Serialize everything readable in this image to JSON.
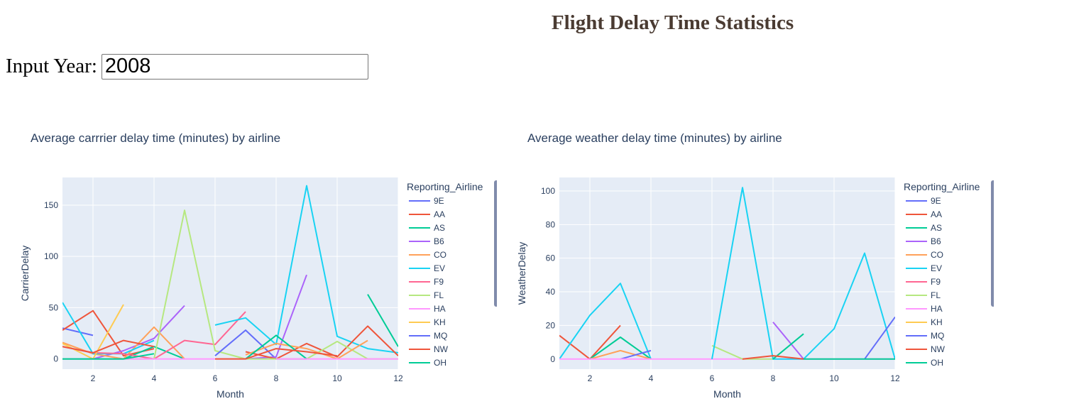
{
  "page": {
    "title": "Flight Delay Time Statistics",
    "input_label": "Input Year:",
    "input_value": "2008"
  },
  "legend_colors": {
    "9E": "#636efa",
    "AA": "#ef553b",
    "AS": "#00cc96",
    "B6": "#ab63fa",
    "CO": "#ffa15a",
    "EV": "#19d3f3",
    "F9": "#ff6692",
    "FL": "#b6e880",
    "HA": "#ff97ff",
    "KH": "#fecb52",
    "MQ": "#636efa",
    "NW": "#ef553b",
    "OH": "#00cc96"
  },
  "chart_data": [
    {
      "type": "line",
      "title": "Average carrrier delay time (minutes) by airline",
      "xlabel": "Month",
      "ylabel": "CarrierDelay",
      "xlim": [
        1,
        12
      ],
      "ylim": [
        -10,
        177
      ],
      "xticks": [
        2,
        4,
        6,
        8,
        10,
        12
      ],
      "yticks": [
        0,
        50,
        100,
        150
      ],
      "legend_title": "Reporting_Airline",
      "legend_entries": [
        "9E",
        "AA",
        "AS",
        "B6",
        "CO",
        "EV",
        "F9",
        "FL",
        "HA",
        "KH",
        "MQ",
        "NW",
        "OH"
      ],
      "legend_position": "right",
      "series": [
        {
          "name": "9E",
          "x": [
            1,
            2
          ],
          "y": [
            30,
            23
          ]
        },
        {
          "name": "AA",
          "x": [
            1,
            2,
            3,
            4
          ],
          "y": [
            28,
            47,
            3,
            10
          ]
        },
        {
          "name": "AS",
          "x": [
            1,
            2,
            3,
            4,
            5
          ],
          "y": [
            0,
            0,
            0,
            12,
            0
          ]
        },
        {
          "name": "B6",
          "x": [
            2,
            3,
            4,
            5
          ],
          "y": [
            0,
            8,
            20,
            52
          ]
        },
        {
          "name": "CO",
          "x": [
            1,
            2,
            3,
            4,
            5
          ],
          "y": [
            16,
            5,
            0,
            31,
            0
          ]
        },
        {
          "name": "EV",
          "x": [
            1,
            2,
            3,
            4
          ],
          "y": [
            55,
            5,
            5,
            18
          ]
        },
        {
          "name": "F9",
          "x": [
            1,
            2,
            3,
            4,
            5,
            6,
            7
          ],
          "y": [
            12,
            6,
            5,
            0,
            18,
            14,
            46
          ]
        },
        {
          "name": "FL",
          "x": [
            1,
            2,
            3,
            4,
            5,
            6,
            7
          ],
          "y": [
            0,
            0,
            0,
            0,
            145,
            8,
            0
          ]
        },
        {
          "name": "HA",
          "x": [
            1,
            2,
            3,
            4,
            5,
            6,
            7
          ],
          "y": [
            0,
            0,
            0,
            0,
            0,
            0,
            0
          ]
        },
        {
          "name": "KH",
          "x": [
            1,
            2,
            3
          ],
          "y": [
            15,
            0,
            53
          ]
        },
        {
          "name": "MQ",
          "x": [
            6,
            7,
            8,
            9
          ],
          "y": [
            3,
            28,
            0,
            0
          ]
        },
        {
          "name": "NW",
          "x": [
            1,
            2,
            3,
            4
          ],
          "y": [
            12,
            6,
            18,
            12
          ]
        },
        {
          "name": "OH",
          "x": [
            1,
            2,
            3,
            4
          ],
          "y": [
            0,
            0,
            0,
            5
          ]
        },
        {
          "name": "EV",
          "x": [
            6,
            7,
            8,
            9,
            10,
            11,
            12
          ],
          "y": [
            33,
            40,
            14,
            169,
            22,
            10,
            6
          ]
        },
        {
          "name": "B6",
          "x": [
            7,
            8,
            9
          ],
          "y": [
            0,
            2,
            82
          ]
        },
        {
          "name": "AA",
          "x": [
            7,
            8,
            9,
            10,
            11,
            12
          ],
          "y": [
            7,
            0,
            15,
            2,
            32,
            3
          ]
        },
        {
          "name": "FL",
          "x": [
            7,
            8,
            9,
            10,
            11,
            12
          ],
          "y": [
            0,
            0,
            0,
            17,
            0,
            0
          ]
        },
        {
          "name": "CO",
          "x": [
            7,
            8,
            9,
            10,
            11
          ],
          "y": [
            4,
            15,
            10,
            0,
            18
          ]
        },
        {
          "name": "AS",
          "x": [
            7,
            8,
            9
          ],
          "y": [
            0,
            23,
            0
          ]
        },
        {
          "name": "AS",
          "x": [
            11,
            12
          ],
          "y": [
            63,
            12
          ]
        },
        {
          "name": "HA",
          "x": [
            8,
            9,
            10,
            11,
            12
          ],
          "y": [
            0,
            0,
            0,
            0,
            0
          ]
        },
        {
          "name": "NW",
          "x": [
            6,
            7,
            8,
            9,
            10
          ],
          "y": [
            0,
            0,
            10,
            7,
            3
          ]
        }
      ]
    },
    {
      "type": "line",
      "title": "Average weather delay time (minutes) by airline",
      "xlabel": "Month",
      "ylabel": "WeatherDelay",
      "xlim": [
        1,
        12
      ],
      "ylim": [
        -6,
        108
      ],
      "xticks": [
        2,
        4,
        6,
        8,
        10,
        12
      ],
      "yticks": [
        0,
        20,
        40,
        60,
        80,
        100
      ],
      "legend_title": "Reporting_Airline",
      "legend_entries": [
        "9E",
        "AA",
        "AS",
        "B6",
        "CO",
        "EV",
        "F9",
        "FL",
        "HA",
        "KH",
        "MQ",
        "NW",
        "OH"
      ],
      "legend_position": "right",
      "series": [
        {
          "name": "AA",
          "x": [
            1,
            2,
            3
          ],
          "y": [
            14,
            0,
            20
          ]
        },
        {
          "name": "EV",
          "x": [
            1,
            2,
            3,
            4
          ],
          "y": [
            0,
            26,
            45,
            0
          ]
        },
        {
          "name": "AS",
          "x": [
            2,
            3,
            4
          ],
          "y": [
            0,
            13,
            0
          ]
        },
        {
          "name": "CO",
          "x": [
            2,
            3,
            4
          ],
          "y": [
            0,
            5,
            0
          ]
        },
        {
          "name": "9E",
          "x": [
            3,
            4
          ],
          "y": [
            0,
            5
          ]
        },
        {
          "name": "HA",
          "x": [
            1,
            2,
            3,
            4,
            5,
            6,
            7,
            8,
            9,
            10,
            11,
            12
          ],
          "y": [
            0,
            0,
            0,
            0,
            0,
            0,
            0,
            0,
            0,
            0,
            0,
            0
          ]
        },
        {
          "name": "FL",
          "x": [
            6,
            7,
            8
          ],
          "y": [
            8,
            0,
            0
          ]
        },
        {
          "name": "EV",
          "x": [
            6,
            7,
            8,
            9,
            10,
            11,
            12
          ],
          "y": [
            0,
            102,
            0,
            0,
            18,
            63,
            0
          ]
        },
        {
          "name": "B6",
          "x": [
            8,
            9
          ],
          "y": [
            22,
            0
          ]
        },
        {
          "name": "AS",
          "x": [
            8,
            9
          ],
          "y": [
            0,
            15
          ]
        },
        {
          "name": "AA",
          "x": [
            7,
            8,
            9
          ],
          "y": [
            0,
            2,
            0
          ]
        },
        {
          "name": "MQ",
          "x": [
            11,
            12
          ],
          "y": [
            0,
            25
          ]
        },
        {
          "name": "AS",
          "x": [
            9,
            10,
            11,
            12
          ],
          "y": [
            0,
            0,
            0,
            0
          ]
        }
      ]
    }
  ]
}
